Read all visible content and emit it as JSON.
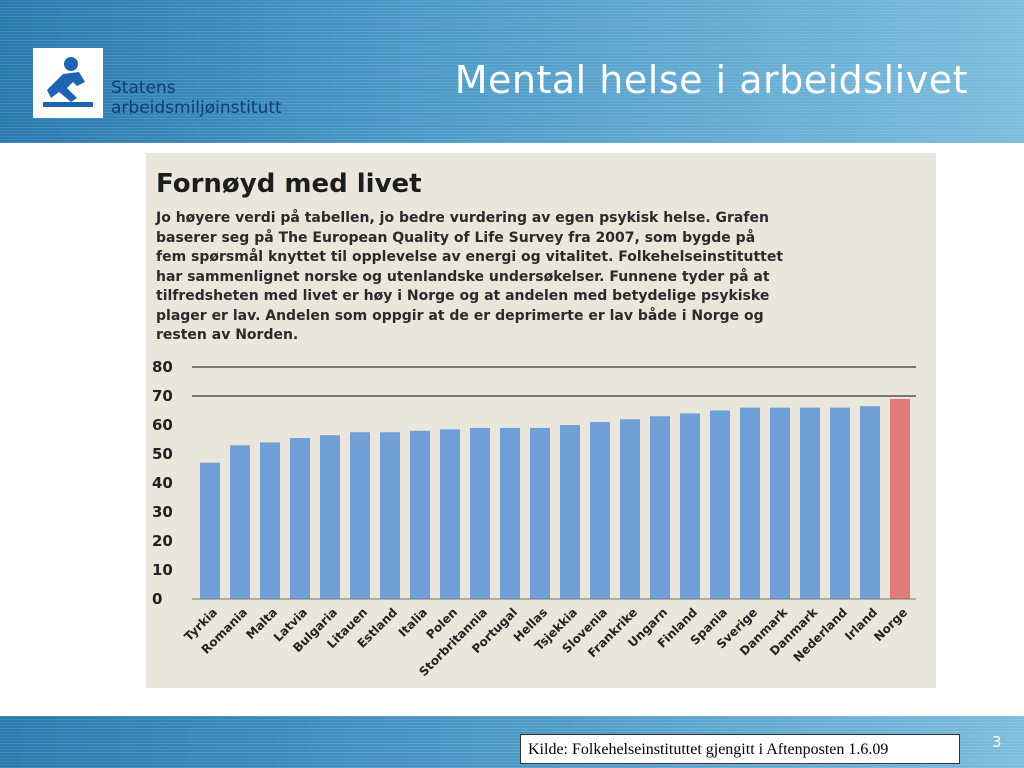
{
  "header": {
    "logo_line1": "Statens",
    "logo_line2": "arbeidsmiljøinstitutt",
    "title": "Mental helse i arbeidslivet"
  },
  "clipping": {
    "title": "Fornøyd med livet",
    "body_lines": [
      "Jo høyere verdi på tabellen, jo bedre vurdering av egen psykisk helse. Grafen",
      "baserer seg på The European Quality of Life Survey fra 2007, som bygde på",
      "fem spørsmål knyttet til opplevelse av energi og vitalitet.  Folkehelseinstituttet",
      "har sammenlignet norske og utenlandske undersøkelser. Funnene tyder på at",
      "tilfredsheten med livet er høy i Norge og at andelen med betydelige psykiske",
      "plager er lav. Andelen som oppgir at de er deprimerte er lav både i Norge og",
      "resten av Norden."
    ]
  },
  "chart_data": {
    "type": "bar",
    "categories": [
      "Tyrkia",
      "Romania",
      "Malta",
      "Latvia",
      "Bulgaria",
      "Litauen",
      "Estland",
      "Italia",
      "Polen",
      "Storbritannia",
      "Portugal",
      "Hellas",
      "Tsjekkia",
      "Slovenia",
      "Frankrike",
      "Ungarn",
      "Finland",
      "Spania",
      "Sverige",
      "Danmark",
      "Danmark",
      "Nederland",
      "Irland",
      "Norge"
    ],
    "values": [
      47,
      53,
      54,
      55.5,
      56.5,
      57.5,
      57.5,
      58,
      58.5,
      59,
      59,
      59,
      60,
      61,
      62,
      63,
      64,
      65,
      66,
      66,
      66,
      66,
      66.5,
      69
    ],
    "highlight_index": 23,
    "bar_color": "#6f9fd4",
    "highlight_color": "#e07d79",
    "yticks": [
      0,
      10,
      20,
      30,
      40,
      50,
      60,
      70,
      80
    ],
    "ylim": [
      0,
      80
    ],
    "gridlines_at": [
      70,
      80
    ],
    "title": "",
    "xlabel": "",
    "ylabel": ""
  },
  "footer": {
    "source": "Kilde: Folkehelseinstituttet gjengitt i Aftenposten 1.6.09",
    "page_number": "3"
  }
}
